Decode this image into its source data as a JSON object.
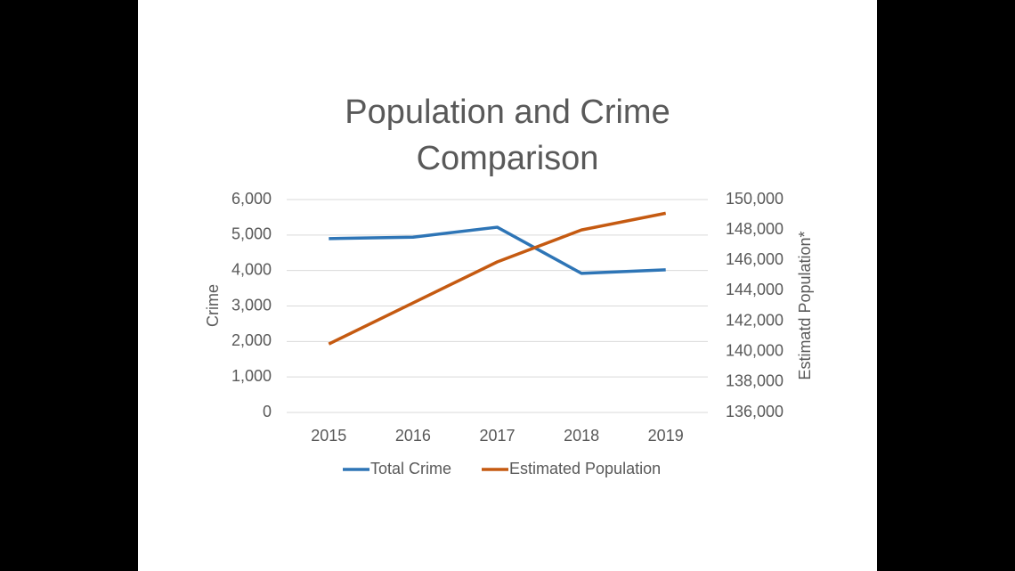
{
  "chart_data": {
    "type": "line",
    "title": "Population and Crime Comparison",
    "y_label": "Crime",
    "y2_label": "Estimatd Population*",
    "categories": [
      "2015",
      "2016",
      "2017",
      "2018",
      "2019"
    ],
    "series": [
      {
        "name": "Total Crime",
        "color": "#2e75b6",
        "values": [
          4900,
          4940,
          5220,
          3920,
          4020
        ]
      },
      {
        "name": "Estimated Population",
        "color": "#c55a11",
        "axis": "y2",
        "values": [
          140500,
          143200,
          145900,
          148000,
          149100
        ]
      }
    ],
    "ylim": [
      0,
      6000
    ],
    "yticks": [
      0,
      {
        "value": 1000,
        "label": "1,000"
      },
      {
        "value": 2000,
        "label": "2,000"
      },
      {
        "value": 3000,
        "label": "3,000"
      },
      {
        "value": 4000,
        "label": "4,000"
      },
      {
        "value": 5000,
        "label": "5,000"
      },
      {
        "value": 6000,
        "label": "6,000"
      }
    ],
    "y2lim": [
      136000,
      150000
    ],
    "y2ticks": [
      {
        "value": 136000,
        "label": "136,000"
      },
      {
        "value": 138000,
        "label": "138,000"
      },
      {
        "value": 140000,
        "label": "140,000"
      },
      {
        "value": 142000,
        "label": "142,000"
      },
      {
        "value": 144000,
        "label": "144,000"
      },
      {
        "value": 146000,
        "label": "146,000"
      },
      {
        "value": 148000,
        "label": "148,000"
      },
      {
        "value": 150000,
        "label": "150,000"
      }
    ],
    "grid": true,
    "legend": "bottom"
  }
}
